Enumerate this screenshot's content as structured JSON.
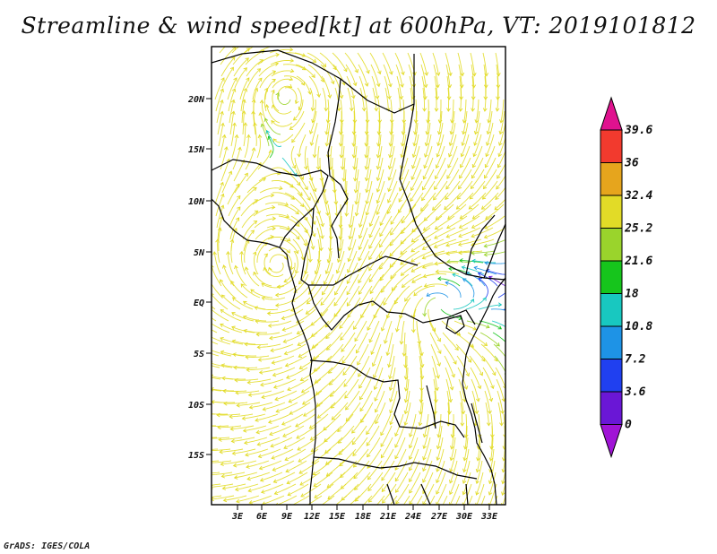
{
  "title": "Streamline & wind speed[kt] at 600hPa, VT: 2019101812",
  "footer": "GrADS: IGES/COLA",
  "map": {
    "lat_labels": [
      "20N",
      "15N",
      "10N",
      "5N",
      "EQ",
      "5S",
      "10S",
      "15S"
    ],
    "lon_labels": [
      "3E",
      "6E",
      "9E",
      "12E",
      "15E",
      "18E",
      "21E",
      "24E",
      "27E",
      "30E",
      "33E"
    ]
  },
  "colorbar": {
    "levels": [
      "39.6",
      "36",
      "32.4",
      "25.2",
      "21.6",
      "18",
      "10.8",
      "7.2",
      "3.6",
      "0"
    ],
    "colors": [
      "#e0128f",
      "#f23a2e",
      "#e6a51d",
      "#e2db27",
      "#9ad42c",
      "#16c51c",
      "#18c8c0",
      "#1e93e6",
      "#2040f0",
      "#6a17d6",
      "#a014d6"
    ]
  }
}
